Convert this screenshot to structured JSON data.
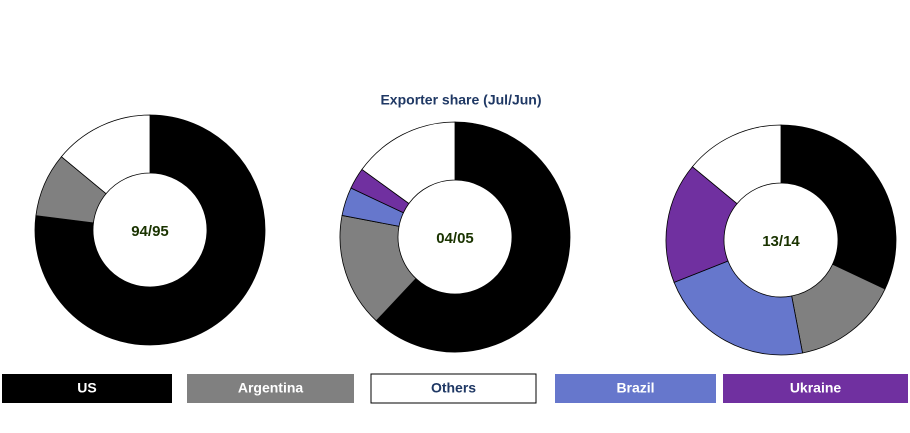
{
  "title": "Exporter share (Jul/Jun)",
  "legend": {
    "names": [
      "US",
      "Argentina",
      "Others",
      "Brazil",
      "Ukraine"
    ],
    "colors": [
      "#000000",
      "#808080",
      "#ffffff",
      "#6677cc",
      "#7030a0"
    ]
  },
  "chart_data": [
    {
      "type": "pie",
      "center_label": "94/95",
      "categories": [
        "US",
        "Argentina",
        "Others"
      ],
      "values": [
        77,
        9,
        14
      ],
      "colors": [
        "#000000",
        "#808080",
        "#ffffff"
      ]
    },
    {
      "type": "pie",
      "center_label": "04/05",
      "categories": [
        "US",
        "Argentina",
        "Brazil",
        "Ukraine",
        "Others"
      ],
      "values": [
        62,
        16,
        4,
        3,
        15
      ],
      "colors": [
        "#000000",
        "#808080",
        "#6677cc",
        "#7030a0",
        "#ffffff"
      ]
    },
    {
      "type": "pie",
      "center_label": "13/14",
      "categories": [
        "US",
        "Argentina",
        "Brazil",
        "Ukraine",
        "Others"
      ],
      "values": [
        32,
        15,
        22,
        17,
        14
      ],
      "colors": [
        "#000000",
        "#808080",
        "#6677cc",
        "#7030a0",
        "#ffffff"
      ]
    }
  ]
}
